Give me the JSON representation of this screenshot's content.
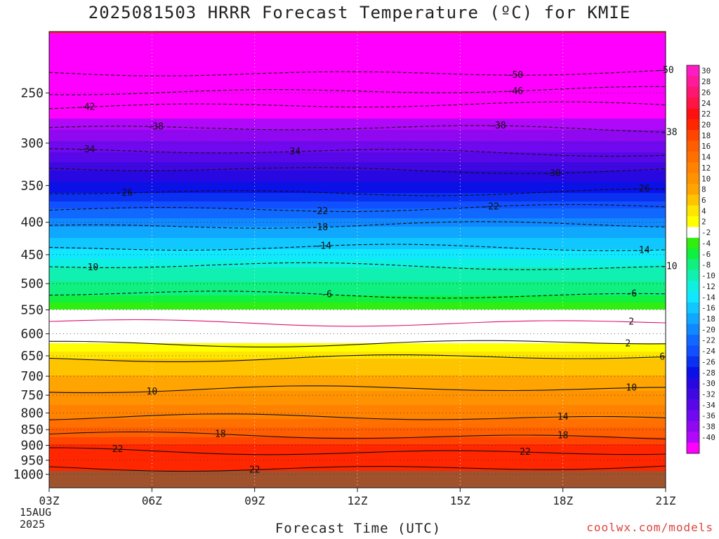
{
  "title": "2025081503 HRRR Forecast Temperature (ºC) for KMIE",
  "credit": "coolwx.com/models",
  "chart_data": {
    "type": "heatmap",
    "title": "2025081503 HRRR Forecast Temperature (ºC) for KMIE",
    "xlabel": "Forecast Time (UTC)",
    "ylabel": "",
    "x_ticks": [
      "03Z",
      "06Z",
      "09Z",
      "12Z",
      "15Z",
      "18Z",
      "21Z"
    ],
    "x_start_date": [
      "15AUG",
      "2025"
    ],
    "x_hours": [
      0,
      18
    ],
    "y_ticks": [
      250,
      300,
      350,
      400,
      450,
      500,
      550,
      600,
      650,
      700,
      750,
      800,
      850,
      900,
      950,
      1000
    ],
    "ylim": [
      200,
      1050
    ],
    "y_log": true,
    "colorbar": {
      "labels": [
        "30",
        "28",
        "26",
        "24",
        "22",
        "20",
        "18",
        "16",
        "14",
        "12",
        "10",
        "8",
        "6",
        "4",
        "2",
        "-2",
        "-4",
        "-6",
        "-8",
        "-10",
        "-12",
        "-14",
        "-16",
        "-18",
        "-20",
        "-22",
        "-24",
        "-26",
        "-28",
        "-30",
        "-32",
        "-34",
        "-36",
        "-38",
        "-40"
      ],
      "colors": [
        "#ff1cc4",
        "#ff1a9a",
        "#ff1670",
        "#ff1446",
        "#ff1010",
        "#ff2600",
        "#ff4500",
        "#ff5e00",
        "#ff7000",
        "#ff8200",
        "#ff9200",
        "#ffa400",
        "#ffc400",
        "#ffe600",
        "#ffff00",
        "#ffffff",
        "#30ee10",
        "#10f040",
        "#10f080",
        "#10f0b0",
        "#10f0e0",
        "#10e8ff",
        "#10c8ff",
        "#10a8ff",
        "#1088ff",
        "#1068ff",
        "#1050ff",
        "#0a30f0",
        "#0a10e8",
        "#2808e0",
        "#4008e0",
        "#5808e8",
        "#7008f0",
        "#9008f0",
        "#b008f8",
        "#ff00ff"
      ],
      "min": -40,
      "max": 30
    },
    "contours": [
      {
        "value": -50,
        "pressure": 232,
        "labels": [
          [
            13.6,
            "-50"
          ],
          [
            18.0,
            "-50"
          ]
        ]
      },
      {
        "value": -46,
        "pressure": 248,
        "labels": [
          [
            13.6,
            "-46"
          ]
        ]
      },
      {
        "value": -42,
        "pressure": 262,
        "labels": [
          [
            1.1,
            "-42"
          ]
        ]
      },
      {
        "value": -38,
        "pressure": 285,
        "labels": [
          [
            3.1,
            "-38"
          ],
          [
            13.1,
            "-38"
          ],
          [
            18.1,
            "-38"
          ]
        ]
      },
      {
        "value": -34,
        "pressure": 310,
        "labels": [
          [
            1.1,
            "-34"
          ],
          [
            7.1,
            "-34"
          ]
        ]
      },
      {
        "value": -30,
        "pressure": 330,
        "labels": [
          [
            14.7,
            "-30"
          ]
        ]
      },
      {
        "value": -26,
        "pressure": 358,
        "labels": [
          [
            2.2,
            "-26"
          ],
          [
            17.3,
            "-26"
          ]
        ]
      },
      {
        "value": -22,
        "pressure": 380,
        "labels": [
          [
            7.9,
            "-22"
          ],
          [
            12.9,
            "-22"
          ]
        ]
      },
      {
        "value": -18,
        "pressure": 405,
        "labels": [
          [
            7.9,
            "-18"
          ]
        ]
      },
      {
        "value": -14,
        "pressure": 440,
        "labels": [
          [
            8.0,
            "-14"
          ],
          [
            17.3,
            "-14"
          ]
        ]
      },
      {
        "value": -10,
        "pressure": 470,
        "labels": [
          [
            1.2,
            "-10"
          ],
          [
            18.1,
            "-10"
          ]
        ]
      },
      {
        "value": -6,
        "pressure": 520,
        "labels": [
          [
            8.1,
            "-6"
          ],
          [
            17.0,
            "-6"
          ]
        ]
      },
      {
        "value": 2,
        "pressure": 575,
        "labels": [
          [
            17.0,
            "2"
          ]
        ]
      },
      {
        "value": 2,
        "pressure": 620,
        "labels": [
          [
            16.9,
            "2"
          ]
        ]
      },
      {
        "value": 6,
        "pressure": 655,
        "labels": [
          [
            17.9,
            "6"
          ]
        ]
      },
      {
        "value": 10,
        "pressure": 735,
        "labels": [
          [
            3.0,
            "10"
          ],
          [
            17.0,
            "10"
          ]
        ]
      },
      {
        "value": 14,
        "pressure": 815,
        "labels": [
          [
            15.0,
            "14"
          ]
        ]
      },
      {
        "value": 18,
        "pressure": 870,
        "labels": [
          [
            5.0,
            "18"
          ],
          [
            15.0,
            "18"
          ]
        ]
      },
      {
        "value": 22,
        "pressure": 920,
        "labels": [
          [
            2.0,
            "22"
          ],
          [
            13.9,
            "22"
          ]
        ]
      },
      {
        "value": 22,
        "pressure": 975,
        "labels": [
          [
            6.0,
            "22"
          ]
        ]
      }
    ],
    "below_ground_pressure": 985,
    "grid": true
  }
}
